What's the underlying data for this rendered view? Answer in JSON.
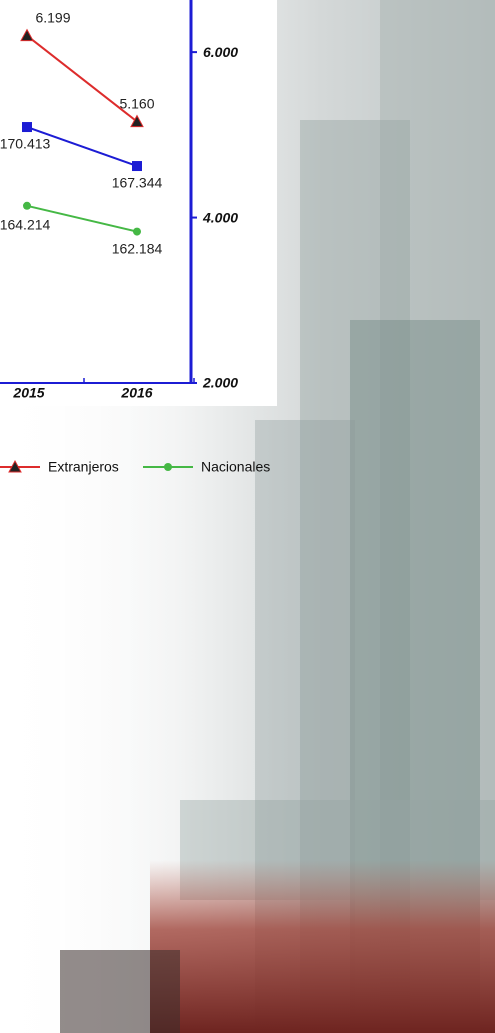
{
  "chart_data": {
    "type": "line",
    "categories": [
      "2015",
      "2016"
    ],
    "series": [
      {
        "name": "Extranjeros",
        "color": "#dd2c2c",
        "marker": "triangle",
        "axis": "y2",
        "values": [
          6199,
          5160
        ],
        "value_labels": [
          "6.199",
          "5.160"
        ]
      },
      {
        "color": "#1c1cd4",
        "marker": "square",
        "values": [
          170413,
          167344
        ],
        "value_labels": [
          "170.413",
          "167.344"
        ]
      },
      {
        "name": "Nacionales",
        "color": "#45b845",
        "marker": "circle",
        "values": [
          164214,
          162184
        ],
        "value_labels": [
          "164.214",
          "162.184"
        ]
      }
    ],
    "ylim": [
      150270,
      180410
    ],
    "y2lim": [
      2000,
      6630
    ],
    "y2ticks": [
      {
        "value": 2000,
        "label": "2.000"
      },
      {
        "value": 4000,
        "label": "4.000"
      },
      {
        "value": 6000,
        "label": "6.000"
      }
    ],
    "axis_color": "#1c1cd4"
  }
}
